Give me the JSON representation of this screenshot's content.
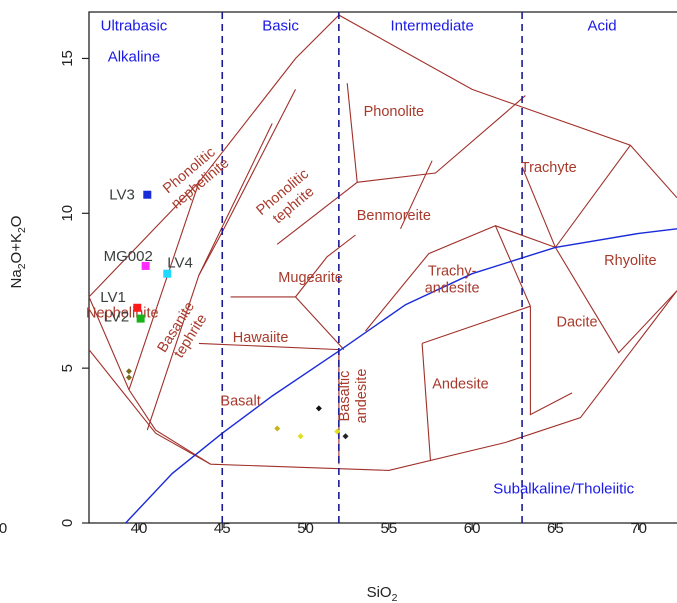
{
  "chart_data": {
    "type": "scatter",
    "title": "",
    "xlabel_main": "SiO",
    "xlabel_sub": "2",
    "ylabel_parts": [
      "Na",
      "2",
      "O+K",
      "2",
      "O"
    ],
    "xlim": [
      37,
      72.3
    ],
    "ylim": [
      0,
      16.5
    ],
    "x_ticks": [
      "40",
      "45",
      "50",
      "55",
      "60",
      "65",
      "70"
    ],
    "x_tick_edge": "0",
    "y_ticks": [
      "0",
      "5",
      "10",
      "15"
    ],
    "region_labels": [
      "Ultrabasic",
      "Basic",
      "Intermediate",
      "Acid",
      "Alkaline",
      "Subalkaline/Tholeiitic"
    ],
    "field_labels": [
      "Phonolite",
      "Trachyte",
      "Phonolitic nephelinite",
      "Phonolitic tephrite",
      "Benmoreite",
      "Mugearite",
      "Trachy- andesite",
      "Rhyolite",
      "Hawaiite",
      "Basanite tephrite",
      "Nephelinite",
      "Dacite",
      "Basalt",
      "Basaltic andesite",
      "Andesite"
    ],
    "samples": [
      {
        "name": "LV3",
        "x": 40.5,
        "y": 10.6,
        "color": "#1a2bd8"
      },
      {
        "name": "MG002",
        "x": 40.4,
        "y": 8.3,
        "color": "#ff2bff"
      },
      {
        "name": "LV4",
        "x": 41.7,
        "y": 8.05,
        "color": "#1fd9ff"
      },
      {
        "name": "LV1",
        "x": 39.9,
        "y": 6.95,
        "color": "#ff1a1a"
      },
      {
        "name": "LV2",
        "x": 40.1,
        "y": 6.6,
        "color": "#19b319"
      }
    ],
    "minor_points": [
      {
        "x": 39.4,
        "y": 4.9,
        "color": "#7a6b1a"
      },
      {
        "x": 39.4,
        "y": 4.7,
        "color": "#7a6b1a"
      },
      {
        "x": 50.8,
        "y": 3.7,
        "color": "#111111"
      },
      {
        "x": 52.4,
        "y": 2.8,
        "color": "#222222"
      },
      {
        "x": 48.3,
        "y": 3.05,
        "color": "#c8b41e"
      },
      {
        "x": 49.7,
        "y": 2.8,
        "color": "#e0e020"
      },
      {
        "x": 51.9,
        "y": 2.95,
        "color": "#e0e020"
      }
    ],
    "silica_boundaries": [
      45,
      52,
      63
    ],
    "alkaline_divide": [
      [
        39.2,
        0
      ],
      [
        42,
        1.6
      ],
      [
        45,
        2.9
      ],
      [
        48,
        4.1
      ],
      [
        52,
        5.55
      ],
      [
        56,
        7.05
      ],
      [
        60,
        8.05
      ],
      [
        65,
        8.9
      ],
      [
        70,
        9.35
      ],
      [
        72.3,
        9.5
      ]
    ],
    "tas_lines": [
      [
        [
          41,
          3
        ],
        [
          41,
          7
        ],
        [
          45,
          9.4
        ],
        [
          48.4,
          11.5
        ],
        [
          52.5,
          14
        ],
        [
          57.6,
          11.7
        ],
        [
          63,
          7
        ],
        [
          63,
          0
        ]
      ],
      [
        [
          45,
          5
        ],
        [
          45,
          9.4
        ]
      ],
      [
        [
          49.4,
          7.3
        ],
        [
          52,
          5
        ]
      ],
      [
        [
          52,
          5
        ],
        [
          52,
          0
        ]
      ],
      [
        [
          57,
          5.9
        ],
        [
          57,
          0
        ]
      ],
      [
        [
          48.4,
          11.5
        ],
        [
          53,
          9.3
        ],
        [
          57.6,
          11.7
        ]
      ],
      [
        [
          53,
          9.3
        ],
        [
          57,
          5.9
        ]
      ]
    ],
    "grid": false,
    "legend": "none"
  }
}
